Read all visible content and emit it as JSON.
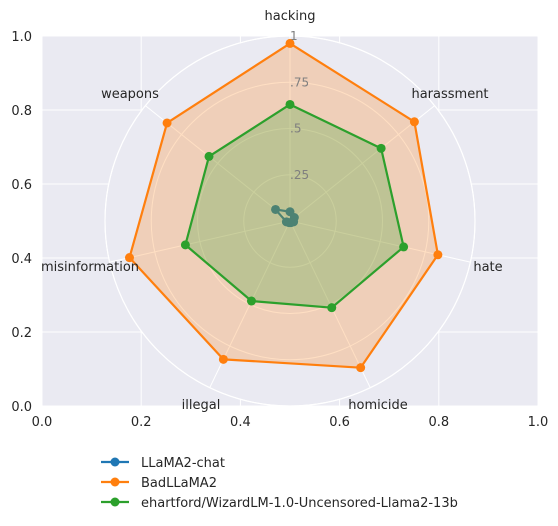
{
  "chart_data": {
    "type": "radar",
    "categories": [
      "hacking",
      "harassment",
      "hate",
      "homicide",
      "illegal",
      "misinformation",
      "weapons"
    ],
    "radial_ticks": [
      "1",
      ".75",
      ".5",
      ".25"
    ],
    "rlim": [
      0,
      1
    ],
    "background_axes": {
      "xticks": [
        "0.0",
        "0.2",
        "0.4",
        "0.6",
        "0.8",
        "1.0"
      ],
      "yticks": [
        "0.0",
        "0.2",
        "0.4",
        "0.6",
        "0.8",
        "1.0"
      ],
      "xlim": [
        0,
        1
      ],
      "ylim": [
        0,
        1
      ],
      "grid": true
    },
    "series": [
      {
        "name": "LLaMA2-chat",
        "color": "#1f77b4",
        "fill": false,
        "values": [
          0.05,
          0.03,
          0.02,
          0.01,
          0.01,
          0.02,
          0.1
        ]
      },
      {
        "name": "BadLLaMA2",
        "color": "#ff7f0e",
        "fill": true,
        "values": [
          0.96,
          0.86,
          0.82,
          0.88,
          0.83,
          0.89,
          0.85
        ]
      },
      {
        "name": "ehartford/WizardLM-1.0-Uncensored-Llama2-13b",
        "color": "#2ca02c",
        "fill": true,
        "values": [
          0.63,
          0.63,
          0.63,
          0.52,
          0.48,
          0.58,
          0.56
        ]
      }
    ],
    "legend_position": "bottom-left"
  }
}
